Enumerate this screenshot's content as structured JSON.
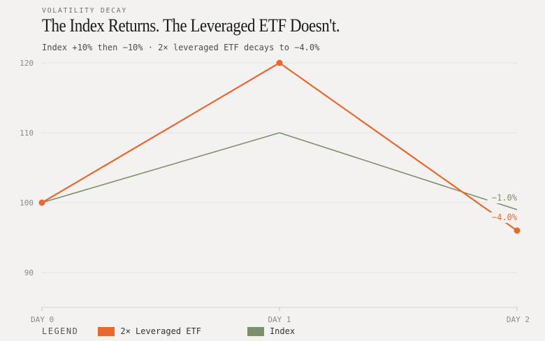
{
  "header": {
    "kicker": "VOLATILITY DECAY",
    "title": "The Index Returns. The Leveraged ETF Doesn't.",
    "subtitle": "Index +10% then −10% · 2× leveraged ETF decays to −4.0%"
  },
  "legend": {
    "label": "LEGEND",
    "items": [
      {
        "label": "2× Leveraged ETF",
        "color": "#e8692f"
      },
      {
        "label": "Index",
        "color": "#7d8f6c"
      }
    ]
  },
  "chart_data": {
    "type": "line",
    "categories": [
      "DAY 0",
      "DAY 1",
      "DAY 2"
    ],
    "series": [
      {
        "name": "2× Leveraged ETF",
        "values": [
          100,
          120,
          96
        ],
        "color": "#e8692f",
        "end_label": "−4.0%",
        "markers": true
      },
      {
        "name": "Index",
        "values": [
          100,
          110,
          99
        ],
        "color": "#7d8f6c",
        "end_label": "−1.0%",
        "markers": false
      }
    ],
    "y_ticks": [
      90,
      100,
      110,
      120
    ],
    "ylim": [
      85,
      120
    ],
    "grid": true
  }
}
